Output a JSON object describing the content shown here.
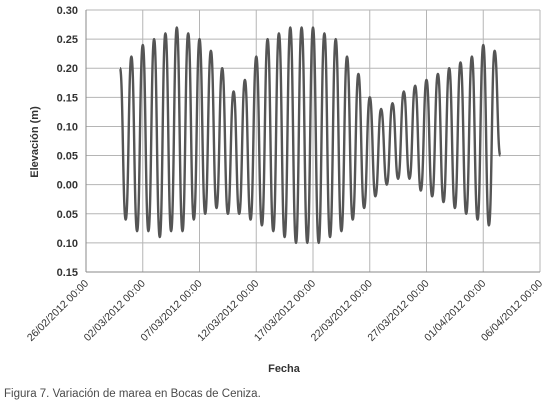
{
  "caption": "Figura 7. Variación de marea en Bocas de Ceniza.",
  "chart_data": {
    "type": "line",
    "title": "",
    "xlabel": "Fecha",
    "ylabel": "Elevación (m)",
    "ylim": [
      -0.15,
      0.3
    ],
    "yticks": [
      0.3,
      0.25,
      0.2,
      0.15,
      0.1,
      0.05,
      0.0,
      -0.05,
      -0.1,
      -0.15
    ],
    "ytick_labels": [
      "0.30",
      "0.25",
      "0.20",
      "0.15",
      "0.10",
      "0.05",
      "0.00",
      "0.05",
      "0.10",
      "0.15"
    ],
    "xlim": [
      "2012-02-26",
      "2012-04-06"
    ],
    "xtick_labels": [
      "26/02/2012 00:00",
      "02/03/2012 00:00",
      "07/03/2012 00:00",
      "12/03/2012 00:00",
      "17/03/2012 00:00",
      "22/03/2012 00:00",
      "27/03/2012 00:00",
      "01/04/2012 00:00",
      "06/04/2012 00:00"
    ],
    "grid": true,
    "legend": "none",
    "line_color": "#555555",
    "series": [
      {
        "x": [
          "2012-02-29",
          "2012-02-29",
          "2012-03-01",
          "2012-03-01",
          "2012-03-02",
          "2012-03-02",
          "2012-03-03",
          "2012-03-03",
          "2012-03-04",
          "2012-03-04",
          "2012-03-05",
          "2012-03-05",
          "2012-03-06",
          "2012-03-06",
          "2012-03-07",
          "2012-03-07",
          "2012-03-08",
          "2012-03-08",
          "2012-03-09",
          "2012-03-09",
          "2012-03-10",
          "2012-03-10",
          "2012-03-11",
          "2012-03-11",
          "2012-03-12",
          "2012-03-12",
          "2012-03-13",
          "2012-03-13",
          "2012-03-14",
          "2012-03-14",
          "2012-03-15",
          "2012-03-15",
          "2012-03-16",
          "2012-03-16",
          "2012-03-17",
          "2012-03-17",
          "2012-03-18",
          "2012-03-18",
          "2012-03-19",
          "2012-03-19",
          "2012-03-20",
          "2012-03-20",
          "2012-03-21",
          "2012-03-21",
          "2012-03-22",
          "2012-03-22",
          "2012-03-23",
          "2012-03-23",
          "2012-03-24",
          "2012-03-24",
          "2012-03-25",
          "2012-03-25",
          "2012-03-26",
          "2012-03-26",
          "2012-03-27",
          "2012-03-27",
          "2012-03-28",
          "2012-03-28",
          "2012-03-29",
          "2012-03-29",
          "2012-03-30",
          "2012-03-30",
          "2012-03-31",
          "2012-03-31",
          "2012-04-01",
          "2012-04-01",
          "2012-04-02",
          "2012-04-02"
        ],
        "y": [
          0.2,
          -0.06,
          0.22,
          -0.08,
          0.24,
          -0.08,
          0.25,
          -0.09,
          0.26,
          -0.08,
          0.27,
          -0.08,
          0.26,
          -0.06,
          0.25,
          -0.05,
          0.23,
          -0.04,
          0.2,
          -0.05,
          0.16,
          -0.05,
          0.18,
          -0.06,
          0.22,
          -0.07,
          0.25,
          -0.08,
          0.26,
          -0.09,
          0.27,
          -0.1,
          0.27,
          -0.1,
          0.27,
          -0.1,
          0.26,
          -0.09,
          0.25,
          -0.08,
          0.22,
          -0.06,
          0.19,
          -0.04,
          0.15,
          -0.02,
          0.13,
          0.0,
          0.14,
          0.01,
          0.16,
          0.01,
          0.17,
          -0.01,
          0.18,
          -0.02,
          0.19,
          -0.03,
          0.2,
          -0.04,
          0.21,
          -0.05,
          0.22,
          -0.06,
          0.24,
          -0.07,
          0.23,
          0.05
        ]
      }
    ]
  }
}
